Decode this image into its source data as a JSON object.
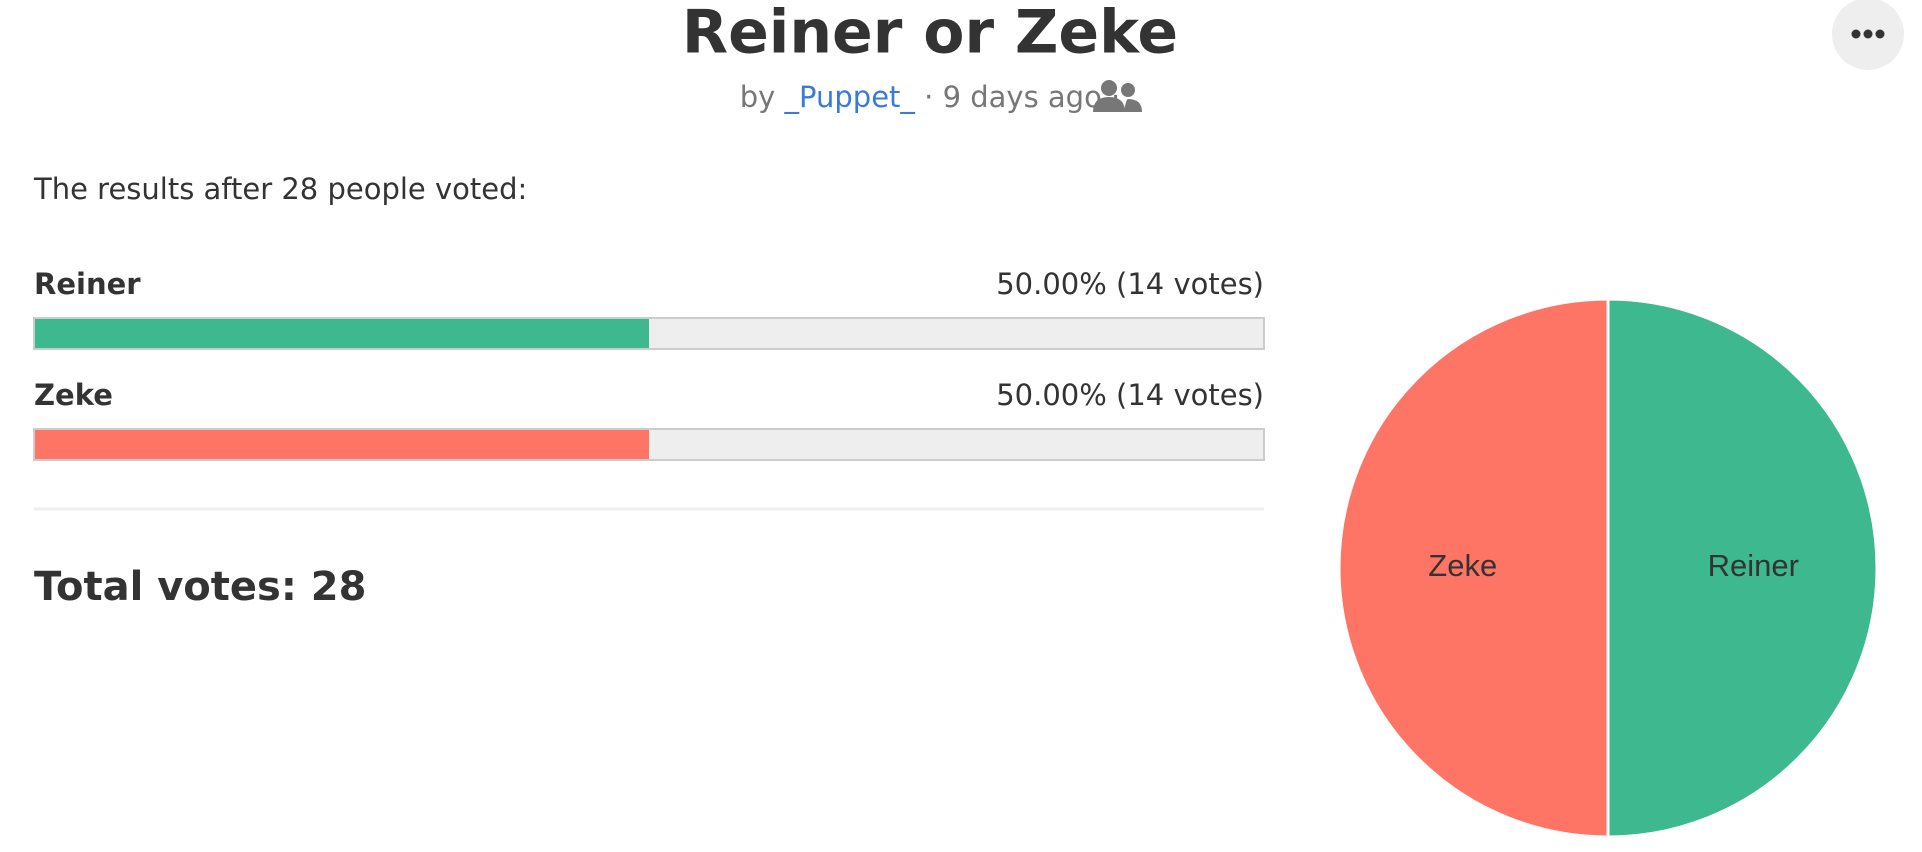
{
  "header": {
    "title": "Reiner or Zeke",
    "by": "by",
    "author": "_Puppet_",
    "separator": "·",
    "time": "9 days ago"
  },
  "results_intro": "The results after 28 people voted:",
  "options": [
    {
      "name": "Reiner",
      "result": "50.00% (14 votes)",
      "percent": 50,
      "votes": 14,
      "color": "#3db88f"
    },
    {
      "name": "Zeke",
      "result": "50.00% (14 votes)",
      "percent": 50,
      "votes": 14,
      "color": "#ff7565"
    }
  ],
  "total": "Total votes: 28"
}
